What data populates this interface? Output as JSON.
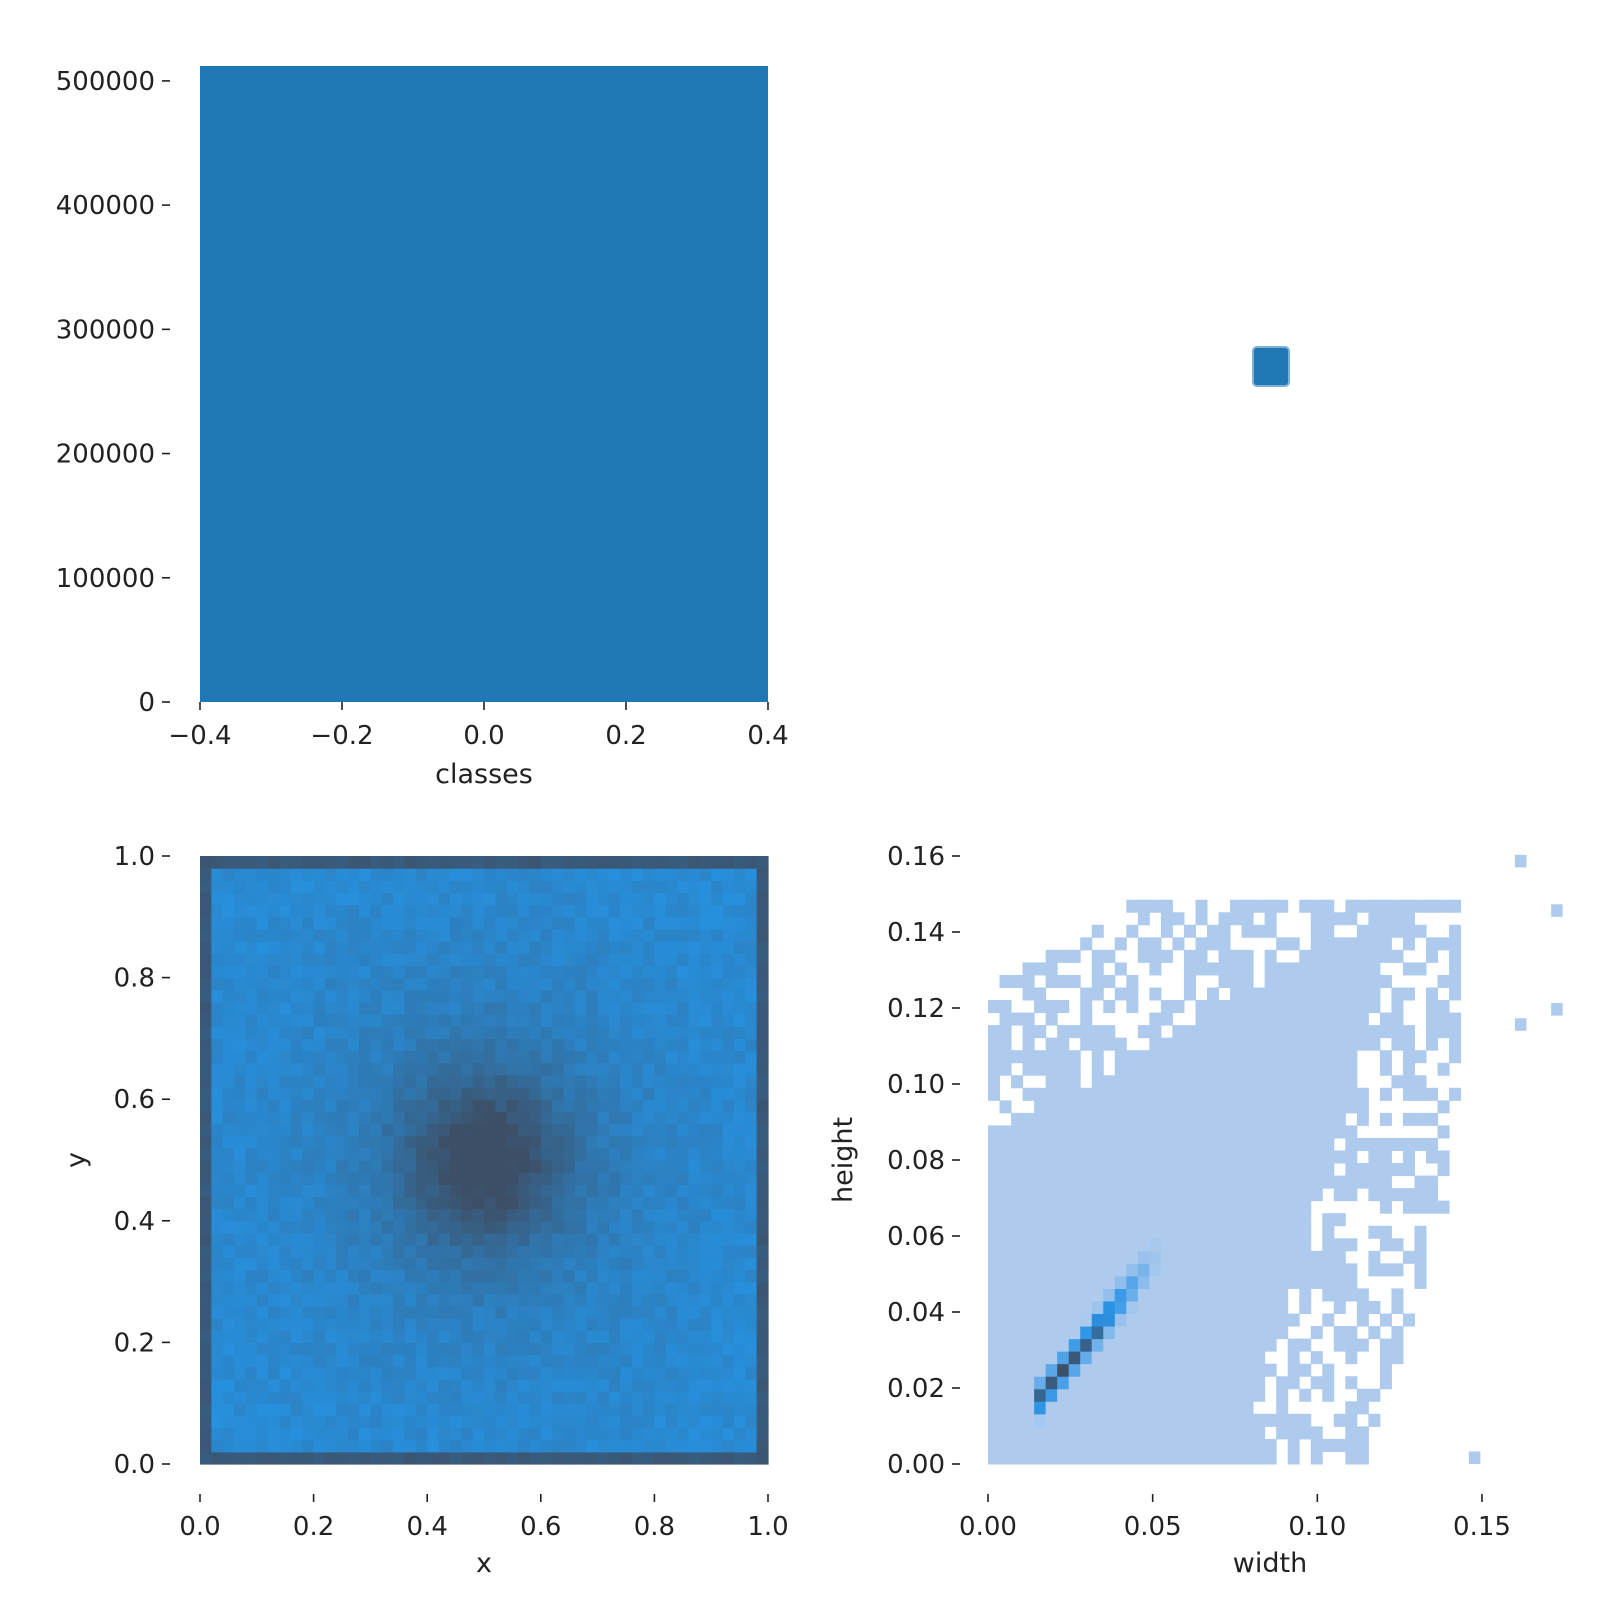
{
  "chart_data": [
    {
      "id": "classes",
      "type": "bar",
      "xlabel": "classes",
      "ylabel": "",
      "xlim": [
        -0.4,
        0.4
      ],
      "ylim": [
        0,
        512000
      ],
      "xticks": [
        -0.4,
        -0.2,
        0.0,
        0.2,
        0.4
      ],
      "xtick_labels": [
        "−0.4",
        "−0.2",
        "0.0",
        "0.2",
        "0.4"
      ],
      "yticks": [
        0,
        100000,
        200000,
        300000,
        400000,
        500000
      ],
      "ytick_labels": [
        "0",
        "100000",
        "200000",
        "300000",
        "400000",
        "500000"
      ],
      "bars": [
        {
          "x0": -0.4,
          "x1": 0.4,
          "value": 512000
        }
      ],
      "color": "#1f77b4"
    },
    {
      "id": "blank-panel",
      "type": "scatter",
      "xlabel": "",
      "ylabel": "",
      "points": [
        {
          "x": 0.5,
          "y": 0.5
        }
      ],
      "color": "#1f77b4"
    },
    {
      "id": "xy",
      "type": "heatmap",
      "xlabel": "x",
      "ylabel": "y",
      "xlim": [
        0,
        1
      ],
      "ylim": [
        0,
        1
      ],
      "xticks": [
        0.0,
        0.2,
        0.4,
        0.6,
        0.8,
        1.0
      ],
      "xtick_labels": [
        "0.0",
        "0.2",
        "0.4",
        "0.6",
        "0.8",
        "1.0"
      ],
      "yticks": [
        0.0,
        0.2,
        0.4,
        0.6,
        0.8,
        1.0
      ],
      "ytick_labels": [
        "0.0",
        "0.2",
        "0.4",
        "0.6",
        "0.8",
        "1.0"
      ],
      "bins": 50,
      "center_density_peak": [
        0.5,
        0.5
      ],
      "colors": {
        "low": "#2596e8",
        "high": "#3d4f66"
      }
    },
    {
      "id": "width-height",
      "type": "heatmap",
      "xlabel": "width",
      "ylabel": "height",
      "xlim": [
        -0.003,
        0.173
      ],
      "ylim": [
        -0.003,
        0.164
      ],
      "xticks": [
        0.0,
        0.05,
        0.1,
        0.15
      ],
      "xtick_labels": [
        "0.00",
        "0.05",
        "0.10",
        "0.15"
      ],
      "yticks": [
        0.0,
        0.02,
        0.04,
        0.06,
        0.08,
        0.1,
        0.12,
        0.14,
        0.16
      ],
      "ytick_labels": [
        "0.00",
        "0.02",
        "0.04",
        "0.06",
        "0.08",
        "0.10",
        "0.12",
        "0.14",
        "0.16"
      ],
      "bin_width": 0.0035,
      "bin_height": 0.0033,
      "density_ridge": {
        "start": [
          0.02,
          0.018
        ],
        "end": [
          0.05,
          0.05
        ]
      },
      "colors": {
        "light": "#aecbee",
        "mid": "#2a93e6",
        "dark": "#3d4f66"
      }
    }
  ]
}
